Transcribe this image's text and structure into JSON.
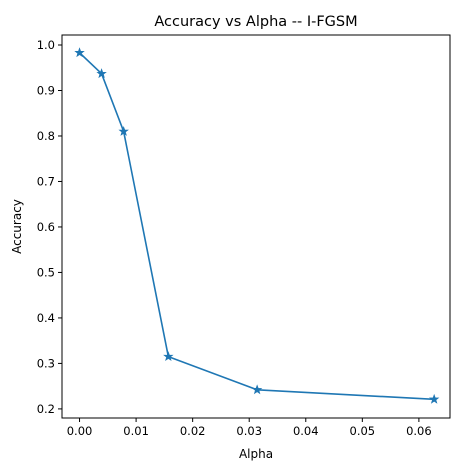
{
  "chart_data": {
    "type": "line",
    "title": "Accuracy vs Alpha -- I-FGSM",
    "xlabel": "Alpha",
    "ylabel": "Accuracy",
    "xlim": [
      -0.0031,
      0.0655
    ],
    "ylim": [
      0.18,
      1.022
    ],
    "xticks": [
      0.0,
      0.01,
      0.02,
      0.03,
      0.04,
      0.05,
      0.06
    ],
    "xtick_labels": [
      "0.00",
      "0.01",
      "0.02",
      "0.03",
      "0.04",
      "0.05",
      "0.06"
    ],
    "yticks": [
      0.2,
      0.3,
      0.4,
      0.5,
      0.6,
      0.7,
      0.8,
      0.9,
      1.0
    ],
    "ytick_labels": [
      "0.2",
      "0.3",
      "0.4",
      "0.5",
      "0.6",
      "0.7",
      "0.8",
      "0.9",
      "1.0"
    ],
    "grid": false,
    "series": [
      {
        "x": [
          0.0,
          0.0039,
          0.0078,
          0.0157,
          0.0314,
          0.0627
        ],
        "y": [
          0.983,
          0.937,
          0.81,
          0.315,
          0.242,
          0.221
        ],
        "marker": "star",
        "color": "#1f77b4"
      }
    ]
  }
}
